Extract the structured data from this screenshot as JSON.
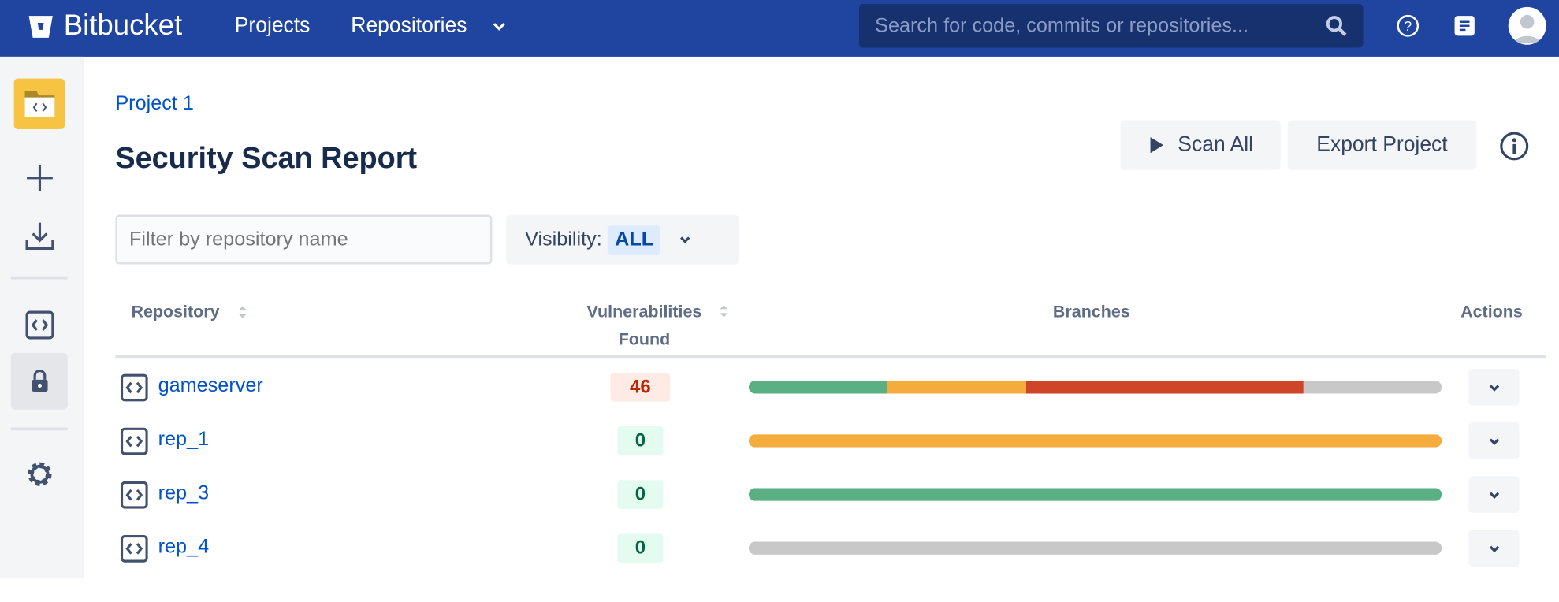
{
  "topbar": {
    "brand": "Bitbucket",
    "nav": [
      "Projects",
      "Repositories"
    ],
    "search_placeholder": "Search for code, commits or repositories..."
  },
  "sidebar": {
    "items": [
      "project-icon",
      "create-icon",
      "import-icon",
      "source-icon",
      "security-icon",
      "settings-icon"
    ],
    "selected": "security-icon"
  },
  "breadcrumb": "Project 1",
  "title": "Security Scan Report",
  "actions": {
    "scan_all": "Scan All",
    "export": "Export Project"
  },
  "filter": {
    "placeholder": "Filter by repository name",
    "value": ""
  },
  "visibility": {
    "label": "Visibility:",
    "value": "ALL"
  },
  "table": {
    "headers": {
      "repository": "Repository",
      "vulnerabilities": "Vulnerabilities Found",
      "branches": "Branches",
      "actions": "Actions"
    },
    "rows": [
      {
        "name": "gameserver",
        "vulnerabilities": "46",
        "severity": "high",
        "branches": [
          {
            "color": "#5bb083",
            "fraction": 0.2
          },
          {
            "color": "#f4ad3d",
            "fraction": 0.2
          },
          {
            "color": "#cf4527",
            "fraction": 0.4
          },
          {
            "color": "#c8c8c8",
            "fraction": 0.2
          }
        ]
      },
      {
        "name": "rep_1",
        "vulnerabilities": "0",
        "severity": "none",
        "branches": [
          {
            "color": "#f4ad3d",
            "fraction": 1
          }
        ]
      },
      {
        "name": "rep_3",
        "vulnerabilities": "0",
        "severity": "none",
        "branches": [
          {
            "color": "#5bb083",
            "fraction": 1
          }
        ]
      },
      {
        "name": "rep_4",
        "vulnerabilities": "0",
        "severity": "none",
        "branches": [
          {
            "color": "#c8c8c8",
            "fraction": 1
          }
        ]
      }
    ]
  },
  "colors": {
    "topbar": "#1f45a0",
    "link": "#0052cc",
    "badge_red_bg": "#ffebe6",
    "badge_red_text": "#bf2600",
    "badge_green_bg": "#e3fcef",
    "badge_green_text": "#006644"
  }
}
